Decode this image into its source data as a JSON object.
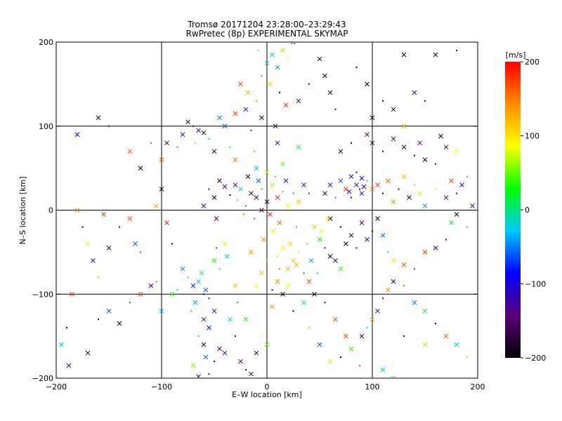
{
  "chart_data": {
    "type": "scatter",
    "title": "Tromsø 20171204 23:28:00–23:29:43",
    "subtitle": "RwPretec (8p) EXPERIMENTAL SKYMAP",
    "xlabel": "E–W location [km]",
    "ylabel": "N–S location [km]",
    "xlim": [
      -200,
      200
    ],
    "ylim": [
      -200,
      200
    ],
    "x_ticks": [
      -200,
      -100,
      0,
      100,
      200
    ],
    "y_ticks": [
      -200,
      -100,
      0,
      100,
      200
    ],
    "x_tick_labels": [
      "−200",
      "−100",
      "0",
      "100",
      "200"
    ],
    "y_tick_labels": [
      "−200",
      "−100",
      "0",
      "100",
      "200"
    ],
    "grid": true,
    "colorbar": {
      "label": "[m/s]",
      "range": [
        -200,
        200
      ],
      "ticks": [
        200,
        100,
        0,
        -100,
        -200
      ],
      "tick_labels": [
        "200",
        "100",
        "0",
        "−100",
        "−200"
      ],
      "colormap": [
        "#000000",
        "#5a0078",
        "#0000ff",
        "#00c8ff",
        "#00ff00",
        "#ffff00",
        "#ff8c00",
        "#ff0000"
      ]
    },
    "markers": [
      "x (large)",
      ". (small dot)"
    ],
    "points": [
      [
        -15,
        20,
        -180
      ],
      [
        -10,
        15,
        -150
      ],
      [
        -5,
        25,
        20
      ],
      [
        0,
        10,
        -190
      ],
      [
        5,
        30,
        60
      ],
      [
        -20,
        5,
        170
      ],
      [
        10,
        15,
        180
      ],
      [
        -25,
        25,
        -10
      ],
      [
        15,
        22,
        40
      ],
      [
        -8,
        35,
        -60
      ],
      [
        3,
        -5,
        190
      ],
      [
        -12,
        -10,
        175
      ],
      [
        20,
        5,
        90
      ],
      [
        -30,
        30,
        -120
      ],
      [
        8,
        40,
        10
      ],
      [
        -5,
        0,
        -170
      ],
      [
        12,
        -15,
        160
      ],
      [
        25,
        20,
        -40
      ],
      [
        -18,
        40,
        -190
      ],
      [
        30,
        10,
        120
      ],
      [
        -35,
        18,
        -200
      ],
      [
        0,
        45,
        70
      ],
      [
        18,
        35,
        -80
      ],
      [
        -22,
        -5,
        150
      ],
      [
        6,
        -25,
        100
      ],
      [
        -40,
        28,
        -140
      ],
      [
        28,
        -20,
        30
      ],
      [
        -10,
        50,
        -30
      ],
      [
        35,
        30,
        -110
      ],
      [
        -28,
        12,
        130
      ],
      [
        15,
        55,
        50
      ],
      [
        -45,
        35,
        -180
      ],
      [
        40,
        20,
        200
      ],
      [
        -3,
        -35,
        140
      ],
      [
        22,
        -40,
        110
      ],
      [
        30,
        -50,
        90
      ],
      [
        25,
        -60,
        110
      ],
      [
        20,
        -70,
        130
      ],
      [
        35,
        -75,
        180
      ],
      [
        40,
        -85,
        170
      ],
      [
        15,
        -45,
        95
      ],
      [
        10,
        -55,
        100
      ],
      [
        28,
        -65,
        120
      ],
      [
        -50,
        15,
        -190
      ],
      [
        -55,
        25,
        -160
      ],
      [
        -60,
        5,
        -120
      ],
      [
        -48,
        -10,
        -150
      ],
      [
        -70,
        100,
        -190
      ],
      [
        -65,
        95,
        -140
      ],
      [
        -60,
        92,
        -200
      ],
      [
        -55,
        85,
        10
      ],
      [
        -75,
        105,
        -170
      ],
      [
        -80,
        90,
        -110
      ],
      [
        -68,
        80,
        60
      ],
      [
        -45,
        110,
        -50
      ],
      [
        -50,
        70,
        -200
      ],
      [
        -35,
        75,
        30
      ],
      [
        -30,
        60,
        150
      ],
      [
        -40,
        100,
        -60
      ],
      [
        -85,
        75,
        170
      ],
      [
        -95,
        80,
        -180
      ],
      [
        -20,
        120,
        -120
      ],
      [
        -15,
        95,
        -80
      ],
      [
        -5,
        110,
        -190
      ],
      [
        -25,
        150,
        170
      ],
      [
        -10,
        130,
        40
      ],
      [
        -18,
        140,
        120
      ],
      [
        -30,
        115,
        180
      ],
      [
        -5,
        160,
        160
      ],
      [
        0,
        175,
        -30
      ],
      [
        5,
        185,
        -10
      ],
      [
        -8,
        190,
        130
      ],
      [
        15,
        190,
        60
      ],
      [
        10,
        170,
        -50
      ],
      [
        20,
        180,
        80
      ],
      [
        25,
        200,
        -70
      ],
      [
        3,
        150,
        110
      ],
      [
        12,
        140,
        -200
      ],
      [
        18,
        125,
        190
      ],
      [
        8,
        100,
        -160
      ],
      [
        -12,
        70,
        140
      ],
      [
        10,
        80,
        -100
      ],
      [
        30,
        75,
        20
      ],
      [
        -75,
        -80,
        -10
      ],
      [
        -70,
        -90,
        -80
      ],
      [
        -65,
        -85,
        -30
      ],
      [
        -60,
        -100,
        -110
      ],
      [
        -58,
        -95,
        -60
      ],
      [
        -62,
        -75,
        0
      ],
      [
        -55,
        -105,
        -120
      ],
      [
        -68,
        -110,
        -40
      ],
      [
        -50,
        -120,
        -90
      ],
      [
        -72,
        -120,
        -20
      ],
      [
        -60,
        -130,
        -150
      ],
      [
        -55,
        -140,
        -80
      ],
      [
        -65,
        -150,
        20
      ],
      [
        -60,
        -160,
        -170
      ],
      [
        -58,
        -175,
        -60
      ],
      [
        -50,
        -180,
        -190
      ],
      [
        -45,
        -165,
        -140
      ],
      [
        -70,
        -185,
        60
      ],
      [
        -55,
        -195,
        -100
      ],
      [
        -65,
        -198,
        -160
      ],
      [
        -40,
        -170,
        -120
      ],
      [
        -30,
        -150,
        -190
      ],
      [
        -35,
        -130,
        -10
      ],
      [
        -80,
        -70,
        -50
      ],
      [
        -85,
        -95,
        -5
      ],
      [
        -90,
        -100,
        40
      ],
      [
        -50,
        -60,
        30
      ],
      [
        -45,
        -70,
        10
      ],
      [
        -40,
        -40,
        100
      ],
      [
        -38,
        -55,
        -20
      ],
      [
        -48,
        -45,
        -60
      ],
      [
        -30,
        -90,
        120
      ],
      [
        -25,
        -180,
        -150
      ],
      [
        -20,
        -190,
        -90
      ],
      [
        -15,
        -195,
        -130
      ],
      [
        -10,
        -170,
        -180
      ],
      [
        -5,
        -150,
        80
      ],
      [
        0,
        -160,
        50
      ],
      [
        -20,
        -130,
        30
      ],
      [
        -28,
        -110,
        -40
      ],
      [
        55,
        20,
        -190
      ],
      [
        60,
        30,
        -120
      ],
      [
        65,
        15,
        170
      ],
      [
        70,
        35,
        -60
      ],
      [
        75,
        25,
        190
      ],
      [
        80,
        15,
        -150
      ],
      [
        85,
        30,
        -100
      ],
      [
        90,
        20,
        -90
      ],
      [
        95,
        35,
        -10
      ],
      [
        100,
        25,
        150
      ],
      [
        105,
        30,
        180
      ],
      [
        110,
        20,
        -180
      ],
      [
        115,
        35,
        160
      ],
      [
        120,
        10,
        140
      ],
      [
        125,
        25,
        -170
      ],
      [
        130,
        40,
        120
      ],
      [
        135,
        15,
        -190
      ],
      [
        140,
        30,
        130
      ],
      [
        145,
        20,
        70
      ],
      [
        150,
        5,
        -40
      ],
      [
        160,
        25,
        100
      ],
      [
        170,
        15,
        -140
      ],
      [
        175,
        35,
        180
      ],
      [
        180,
        20,
        -110
      ],
      [
        185,
        30,
        -90
      ],
      [
        80,
        40,
        -80
      ],
      [
        85,
        45,
        -110
      ],
      [
        90,
        38,
        -95
      ],
      [
        78,
        22,
        -120
      ],
      [
        88,
        25,
        -100
      ],
      [
        92,
        28,
        -105
      ],
      [
        60,
        -10,
        -200
      ],
      [
        70,
        -20,
        -170
      ],
      [
        80,
        -30,
        -190
      ],
      [
        90,
        -15,
        -150
      ],
      [
        100,
        -25,
        -180
      ],
      [
        95,
        -35,
        -120
      ],
      [
        75,
        -40,
        -200
      ],
      [
        85,
        -45,
        -160
      ],
      [
        105,
        -10,
        -190
      ],
      [
        110,
        -30,
        -60
      ],
      [
        115,
        -50,
        -30
      ],
      [
        120,
        -60,
        100
      ],
      [
        130,
        -65,
        170
      ],
      [
        140,
        -70,
        -60
      ],
      [
        150,
        -50,
        180
      ],
      [
        160,
        -45,
        -100
      ],
      [
        170,
        -35,
        -160
      ],
      [
        175,
        -15,
        20
      ],
      [
        180,
        -5,
        -190
      ],
      [
        190,
        -20,
        150
      ],
      [
        195,
        5,
        -130
      ],
      [
        70,
        70,
        -200
      ],
      [
        80,
        80,
        -190
      ],
      [
        95,
        90,
        -150
      ],
      [
        100,
        80,
        -170
      ],
      [
        110,
        70,
        -190
      ],
      [
        120,
        85,
        -160
      ],
      [
        130,
        75,
        -200
      ],
      [
        140,
        65,
        -180
      ],
      [
        145,
        80,
        -140
      ],
      [
        150,
        60,
        -190
      ],
      [
        160,
        55,
        -120
      ],
      [
        170,
        75,
        -170
      ],
      [
        180,
        70,
        90
      ],
      [
        190,
        40,
        160
      ],
      [
        165,
        88,
        -200
      ],
      [
        100,
        110,
        -190
      ],
      [
        110,
        130,
        -200
      ],
      [
        120,
        120,
        -190
      ],
      [
        130,
        100,
        120
      ],
      [
        150,
        130,
        -140
      ],
      [
        140,
        140,
        -130
      ],
      [
        95,
        150,
        -200
      ],
      [
        85,
        170,
        -190
      ],
      [
        130,
        185,
        -200
      ],
      [
        160,
        185,
        -190
      ],
      [
        180,
        190,
        -120
      ],
      [
        55,
        160,
        -190
      ],
      [
        60,
        140,
        -180
      ],
      [
        40,
        150,
        -150
      ],
      [
        50,
        180,
        -200
      ],
      [
        30,
        130,
        -170
      ],
      [
        65,
        120,
        -110
      ],
      [
        -180,
        90,
        -90
      ],
      [
        -160,
        110,
        -190
      ],
      [
        -150,
        100,
        -110
      ],
      [
        -130,
        70,
        170
      ],
      [
        -120,
        50,
        -190
      ],
      [
        -110,
        80,
        170
      ],
      [
        -100,
        60,
        160
      ],
      [
        -95,
        -15,
        190
      ],
      [
        -90,
        -40,
        -190
      ],
      [
        -100,
        25,
        -200
      ],
      [
        -105,
        5,
        130
      ],
      [
        -120,
        -50,
        180
      ],
      [
        -125,
        -40,
        -60
      ],
      [
        -130,
        -10,
        170
      ],
      [
        -140,
        -20,
        -150
      ],
      [
        -150,
        -45,
        -170
      ],
      [
        -155,
        -5,
        180
      ],
      [
        -160,
        -80,
        60
      ],
      [
        -165,
        -60,
        -120
      ],
      [
        -170,
        -40,
        80
      ],
      [
        -175,
        -20,
        -190
      ],
      [
        -180,
        0,
        150
      ],
      [
        -185,
        -100,
        180
      ],
      [
        -190,
        -140,
        -200
      ],
      [
        -188,
        -185,
        -150
      ],
      [
        -170,
        -170,
        -190
      ],
      [
        -160,
        -130,
        -180
      ],
      [
        -150,
        -120,
        -70
      ],
      [
        -140,
        -135,
        -190
      ],
      [
        -130,
        -110,
        -60
      ],
      [
        -120,
        -100,
        170
      ],
      [
        -110,
        -90,
        -170
      ],
      [
        -105,
        -85,
        160
      ],
      [
        -100,
        -120,
        -40
      ],
      [
        -195,
        -160,
        -30
      ],
      [
        40,
        -140,
        130
      ],
      [
        50,
        -160,
        -60
      ],
      [
        60,
        -180,
        100
      ],
      [
        70,
        -175,
        -200
      ],
      [
        80,
        -165,
        40
      ],
      [
        90,
        -150,
        -160
      ],
      [
        95,
        -140,
        -20
      ],
      [
        100,
        -130,
        130
      ],
      [
        105,
        -120,
        -110
      ],
      [
        110,
        -105,
        -150
      ],
      [
        115,
        -95,
        140
      ],
      [
        120,
        -85,
        -180
      ],
      [
        130,
        -90,
        170
      ],
      [
        140,
        -110,
        -50
      ],
      [
        150,
        -120,
        20
      ],
      [
        160,
        -135,
        -190
      ],
      [
        170,
        -150,
        160
      ],
      [
        180,
        -160,
        -10
      ],
      [
        190,
        -175,
        60
      ],
      [
        110,
        -190,
        -30
      ],
      [
        120,
        -200,
        0
      ],
      [
        88,
        -185,
        -40
      ],
      [
        75,
        -150,
        170
      ],
      [
        65,
        -130,
        170
      ],
      [
        55,
        -110,
        -200
      ],
      [
        45,
        -100,
        -190
      ],
      [
        35,
        -110,
        -10
      ],
      [
        25,
        -120,
        -200
      ],
      [
        15,
        -100,
        -190
      ],
      [
        5,
        -115,
        140
      ],
      [
        130,
        -150,
        -190
      ],
      [
        150,
        -160,
        60
      ],
      [
        -5,
        -75,
        120
      ],
      [
        0,
        -60,
        130
      ],
      [
        10,
        -85,
        150
      ],
      [
        -10,
        -90,
        90
      ],
      [
        5,
        -95,
        -200
      ],
      [
        20,
        -90,
        80
      ],
      [
        -15,
        -50,
        140
      ],
      [
        12,
        -70,
        160
      ],
      [
        45,
        -20,
        60
      ],
      [
        50,
        -35,
        30
      ],
      [
        55,
        -45,
        -120
      ],
      [
        60,
        -55,
        -190
      ],
      [
        65,
        -60,
        -160
      ],
      [
        48,
        -75,
        20
      ],
      [
        42,
        -60,
        -40
      ],
      [
        70,
        -70,
        40
      ],
      [
        38,
        -40,
        50
      ],
      [
        52,
        -25,
        80
      ],
      [
        58,
        -10,
        100
      ]
    ]
  }
}
